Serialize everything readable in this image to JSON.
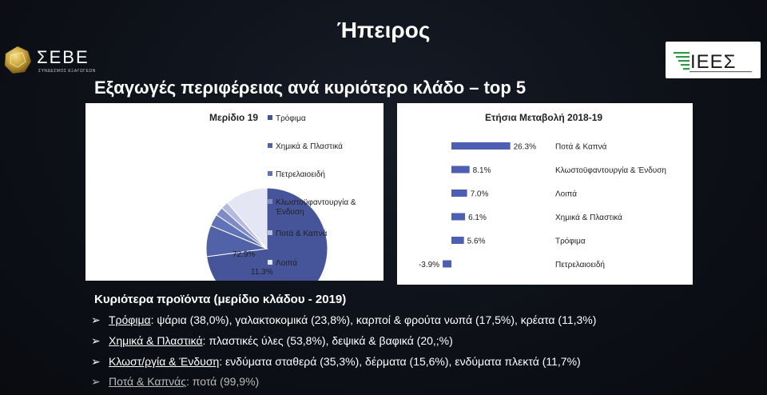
{
  "slide": {
    "title": "Ήπειρος",
    "subtitle": "Εξαγωγές περιφέρειας ανά κυριότερο κλάδο – top 5"
  },
  "logos": {
    "left": {
      "text": "ΣΕΒΕ",
      "subtext": "ΣΥΝΔΕΣΜΟΣ ΕΞΑΓΩΓΕΩΝ",
      "icon": "seve-logo-icon"
    },
    "right": {
      "text": "ΙΕΕΣ",
      "icon": "iees-logo-icon"
    }
  },
  "chart_data": [
    {
      "type": "pie",
      "title": "Μερίδιο 19",
      "categories": [
        "Τρόφιμα",
        "Χημικά & Πλαστικά",
        "Πετρελαιοειδή",
        "Κλωστοϋφαντουργία & Ένδυση",
        "Ποτά & Καπνά",
        "Λοιπά"
      ],
      "values": [
        72.9,
        8.3,
        3.2,
        2.3,
        2.0,
        11.3
      ],
      "data_labels": [
        "72.9%",
        "8.3%",
        "3.2%",
        "2.3%",
        "2.0%",
        "11.3%"
      ],
      "colors": [
        "#46549a",
        "#5262a8",
        "#6272b6",
        "#7f8bc4",
        "#b4bbdf",
        "#e4e6f3"
      ],
      "legend_labels": [
        "Τρόφιμα",
        "Χημικά & Πλαστικά",
        "Πετρελαιοειδή",
        "Κλωστοϋφαντουργία &",
        "Ένδυση",
        "Ποτά & Καπνά",
        "Λοιπά"
      ],
      "legend": "right"
    },
    {
      "type": "bar",
      "orientation": "horizontal",
      "title": "Ετήσια Μεταβολή 2018-19",
      "categories": [
        "Ποτά & Καπνά",
        "Κλωστοϋφαντουργία & Ένδυση",
        "Λοιπά",
        "Χημικά & Πλαστικά",
        "Τρόφιμα",
        "Πετρελαιοειδή"
      ],
      "values": [
        26.3,
        8.1,
        7.0,
        6.1,
        5.6,
        -3.9
      ],
      "data_labels": [
        "26.3%",
        "8.1%",
        "7.0%",
        "6.1%",
        "5.6%",
        "-3.9%"
      ],
      "color": "#4e5fb3"
    }
  ],
  "products": {
    "title": "Κυριότερα προϊόντα (μερίδιο κλάδου - 2019)",
    "items": [
      {
        "category": "Τρόφιμα",
        "text": ": ψάρια (38,0%), γαλακτοκομικά (23,8%), καρποί & φρούτα νωπά (17,5%), κρέατα (11,3%)"
      },
      {
        "category": "Χημικά & Πλαστικά",
        "text": ": πλαστικές ύλες (53,8%), δεψικά & βαφικά (20,;%)"
      },
      {
        "category": "Κλωστ/ργία & Ένδυση",
        "text": ": ενδύματα σταθερά (35,3%), δέρματα (15,6%), ενδύματα πλεκτά (11,7%)"
      },
      {
        "category": "Ποτά & Καπνάς",
        "text": ": ποτά (99,9%)"
      }
    ],
    "bullet": "➢"
  }
}
